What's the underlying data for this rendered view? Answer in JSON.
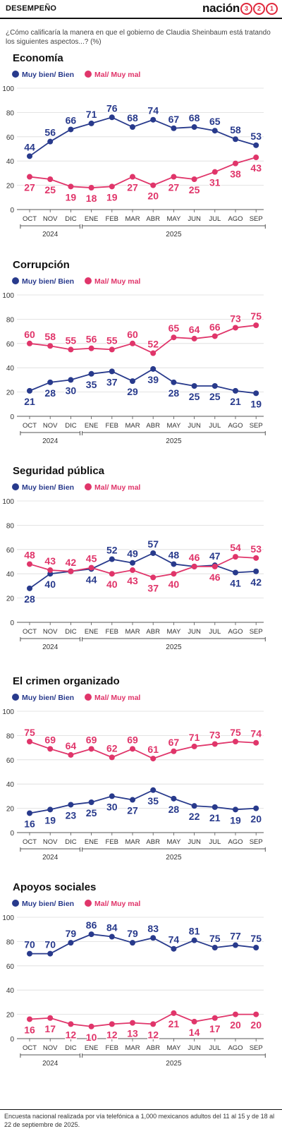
{
  "header": {
    "section": "DESEMPEÑO",
    "brand": "nación",
    "brand_digits": [
      "3",
      "2",
      "1"
    ]
  },
  "question": "¿Cómo calificaría la manera en que el gobierno de Claudia Sheinbaum está tratando los siguientes aspectos...? (%)",
  "colors": {
    "positive": "#283a8c",
    "negative": "#e0356a",
    "axis": "#555555",
    "grid": "#dddddd"
  },
  "footer": "Encuesta nacional realizada por vía telefónica a 1,000 mexicanos adultos del 11 al 15 y de 18 al 22 de septiembre de 2025.",
  "chart_data": [
    {
      "type": "line",
      "title": "Economía",
      "categories": [
        "OCT",
        "NOV",
        "DIC",
        "ENE",
        "FEB",
        "MAR",
        "ABR",
        "MAY",
        "JUN",
        "JUL",
        "AGO",
        "SEP"
      ],
      "year_groups": [
        {
          "label": "2024",
          "from": 0,
          "to": 2
        },
        {
          "label": "2025",
          "from": 3,
          "to": 11
        }
      ],
      "ylim": [
        0,
        100
      ],
      "yticks": [
        0,
        20,
        40,
        60,
        80,
        100
      ],
      "grid": true,
      "legend": "top-left",
      "series": [
        {
          "name": "Muy bien/ Bien",
          "color": "#283a8c",
          "values": [
            44,
            56,
            66,
            71,
            76,
            68,
            74,
            67,
            68,
            65,
            58,
            53
          ]
        },
        {
          "name": "Mal/ Muy mal",
          "color": "#e0356a",
          "values": [
            27,
            25,
            19,
            18,
            19,
            27,
            20,
            27,
            25,
            31,
            38,
            43
          ]
        }
      ]
    },
    {
      "type": "line",
      "title": "Corrupción",
      "categories": [
        "OCT",
        "NOV",
        "DIC",
        "ENE",
        "FEB",
        "MAR",
        "ABR",
        "MAY",
        "JUN",
        "JUL",
        "AGO",
        "SEP"
      ],
      "year_groups": [
        {
          "label": "2024",
          "from": 0,
          "to": 2
        },
        {
          "label": "2025",
          "from": 3,
          "to": 11
        }
      ],
      "ylim": [
        0,
        100
      ],
      "yticks": [
        0,
        20,
        40,
        60,
        80,
        100
      ],
      "grid": true,
      "legend": "top-left",
      "series": [
        {
          "name": "Muy bien/ Bien",
          "color": "#283a8c",
          "values": [
            21,
            28,
            30,
            35,
            37,
            29,
            39,
            28,
            25,
            25,
            21,
            19
          ]
        },
        {
          "name": "Mal/ Muy mal",
          "color": "#e0356a",
          "values": [
            60,
            58,
            55,
            56,
            55,
            60,
            52,
            65,
            64,
            66,
            73,
            75
          ]
        }
      ]
    },
    {
      "type": "line",
      "title": "Seguridad pública",
      "categories": [
        "OCT",
        "NOV",
        "DIC",
        "ENE",
        "FEB",
        "MAR",
        "ABR",
        "MAY",
        "JUN",
        "JUL",
        "AGO",
        "SEP"
      ],
      "year_groups": [
        {
          "label": "2024",
          "from": 0,
          "to": 2
        },
        {
          "label": "2025",
          "from": 3,
          "to": 11
        }
      ],
      "ylim": [
        0,
        100
      ],
      "yticks": [
        0,
        20,
        40,
        60,
        80,
        100
      ],
      "grid": true,
      "legend": "top-left",
      "series": [
        {
          "name": "Muy bien/ Bien",
          "color": "#283a8c",
          "values": [
            28,
            40,
            42,
            44,
            52,
            49,
            57,
            48,
            46,
            47,
            41,
            42
          ]
        },
        {
          "name": "Mal/ Muy mal",
          "color": "#e0356a",
          "values": [
            48,
            43,
            42,
            45,
            40,
            43,
            37,
            40,
            46,
            46,
            54,
            53
          ]
        }
      ]
    },
    {
      "type": "line",
      "title": "El crimen organizado",
      "categories": [
        "OCT",
        "NOV",
        "DIC",
        "ENE",
        "FEB",
        "MAR",
        "ABR",
        "MAY",
        "JUN",
        "JUL",
        "AGO",
        "SEP"
      ],
      "year_groups": [
        {
          "label": "2024",
          "from": 0,
          "to": 2
        },
        {
          "label": "2025",
          "from": 3,
          "to": 11
        }
      ],
      "ylim": [
        0,
        100
      ],
      "yticks": [
        0,
        20,
        40,
        60,
        80,
        100
      ],
      "grid": true,
      "legend": "top-left",
      "series": [
        {
          "name": "Muy bien/ Bien",
          "color": "#283a8c",
          "values": [
            16,
            19,
            23,
            25,
            30,
            27,
            35,
            28,
            22,
            21,
            19,
            20
          ]
        },
        {
          "name": "Mal/ Muy mal",
          "color": "#e0356a",
          "values": [
            75,
            69,
            64,
            69,
            62,
            69,
            61,
            67,
            71,
            73,
            75,
            74
          ]
        }
      ]
    },
    {
      "type": "line",
      "title": "Apoyos sociales",
      "categories": [
        "OCT",
        "NOV",
        "DIC",
        "ENE",
        "FEB",
        "MAR",
        "ABR",
        "MAY",
        "JUN",
        "JUL",
        "AGO",
        "SEP"
      ],
      "year_groups": [
        {
          "label": "2024",
          "from": 0,
          "to": 2
        },
        {
          "label": "2025",
          "from": 3,
          "to": 11
        }
      ],
      "ylim": [
        0,
        100
      ],
      "yticks": [
        0,
        20,
        40,
        60,
        80,
        100
      ],
      "grid": true,
      "legend": "top-left",
      "series": [
        {
          "name": "Muy bien/ Bien",
          "color": "#283a8c",
          "values": [
            70,
            70,
            79,
            86,
            84,
            79,
            83,
            74,
            81,
            75,
            77,
            75
          ]
        },
        {
          "name": "Mal/ Muy mal",
          "color": "#e0356a",
          "values": [
            16,
            17,
            12,
            10,
            12,
            13,
            12,
            21,
            14,
            17,
            20,
            20
          ]
        }
      ]
    }
  ]
}
